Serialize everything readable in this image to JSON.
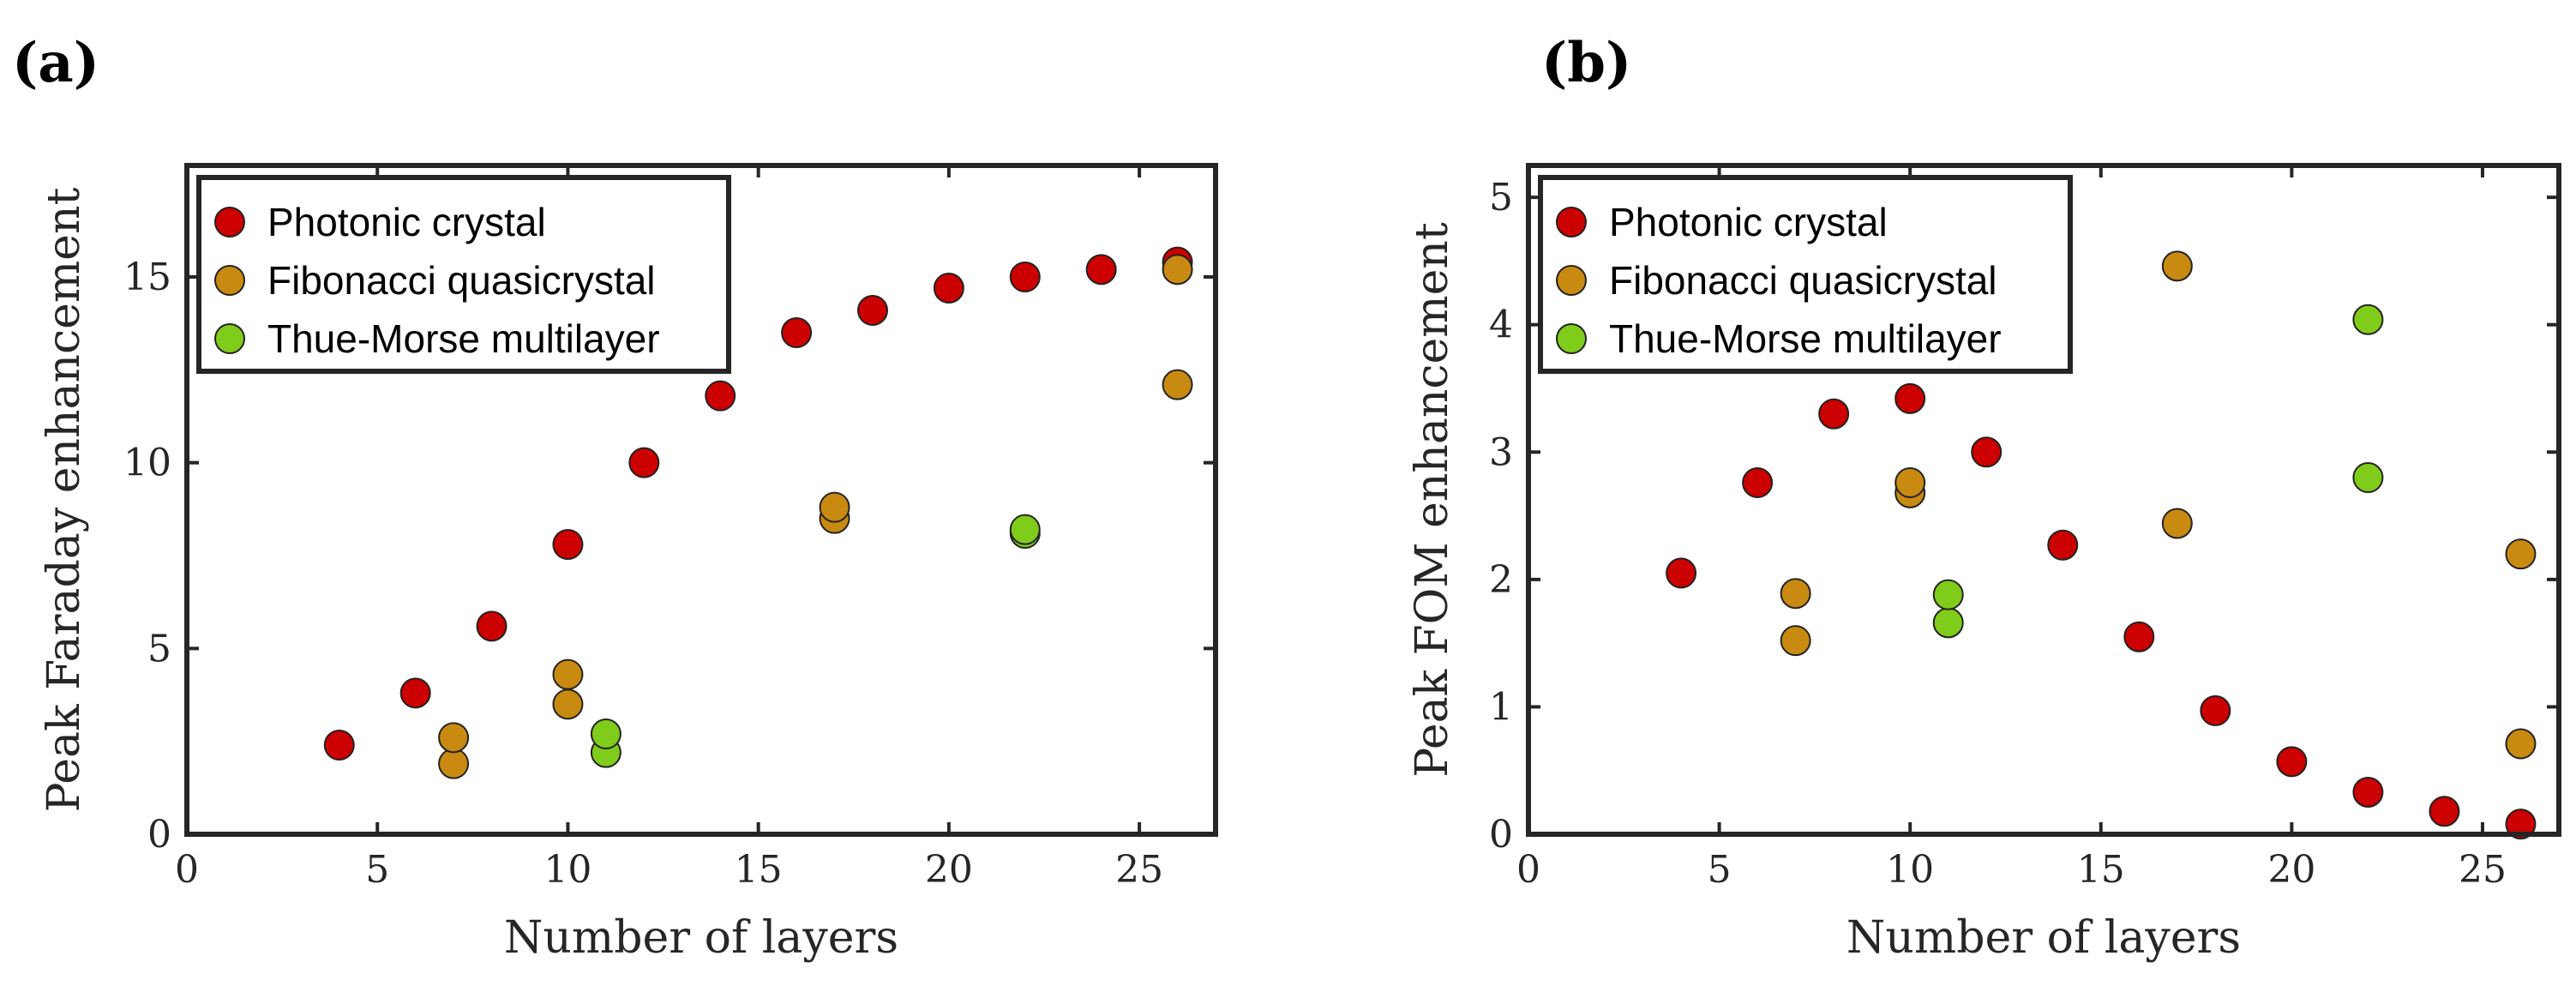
{
  "chart_data": [
    {
      "panel_label": "(a)",
      "type": "scatter",
      "xlabel": "Number of layers",
      "ylabel": "Peak Faraday enhancement",
      "xlim": [
        0,
        27
      ],
      "ylim": [
        0,
        18
      ],
      "xticks": [
        0,
        5,
        10,
        15,
        20,
        25
      ],
      "yticks": [
        0,
        5,
        10,
        15
      ],
      "xtick_labels": [
        "0",
        "5",
        "10",
        "15",
        "20",
        "25"
      ],
      "ytick_labels": [
        "0",
        "5",
        "10",
        "15"
      ],
      "grid": false,
      "legend_position": "top-left",
      "series": [
        {
          "name": "Photonic crystal",
          "color": "#cc0000",
          "x": [
            4,
            6,
            8,
            10,
            12,
            14,
            16,
            18,
            20,
            22,
            24,
            26
          ],
          "y": [
            2.4,
            3.8,
            5.6,
            7.8,
            10.0,
            11.8,
            13.5,
            14.1,
            14.7,
            15.0,
            15.2,
            15.4
          ]
        },
        {
          "name": "Fibonacci quasicrystal",
          "color": "#c88a10",
          "x": [
            7,
            7,
            10,
            10,
            17,
            17,
            26,
            26
          ],
          "y": [
            1.9,
            2.6,
            3.5,
            4.3,
            8.5,
            8.8,
            12.1,
            15.2
          ]
        },
        {
          "name": "Thue-Morse multilayer",
          "color": "#80cc1a",
          "x": [
            11,
            11,
            22,
            22
          ],
          "y": [
            2.2,
            2.7,
            8.1,
            8.2
          ]
        }
      ]
    },
    {
      "panel_label": "(b)",
      "type": "scatter",
      "xlabel": "Number of layers",
      "ylabel": "Peak FOM enhancement",
      "xlim": [
        0,
        27
      ],
      "ylim": [
        0,
        5.25
      ],
      "xticks": [
        0,
        5,
        10,
        15,
        20,
        25
      ],
      "yticks": [
        0,
        1,
        2,
        3,
        4,
        5
      ],
      "xtick_labels": [
        "0",
        "5",
        "10",
        "15",
        "20",
        "25"
      ],
      "ytick_labels": [
        "0",
        "1",
        "2",
        "3",
        "4",
        "5"
      ],
      "grid": false,
      "legend_position": "top-left",
      "series": [
        {
          "name": "Photonic crystal",
          "color": "#cc0000",
          "x": [
            4,
            6,
            8,
            10,
            12,
            14,
            16,
            18,
            20,
            22,
            24,
            26
          ],
          "y": [
            2.05,
            2.76,
            3.3,
            3.42,
            3.0,
            2.27,
            1.55,
            0.97,
            0.57,
            0.33,
            0.18,
            0.08
          ]
        },
        {
          "name": "Fibonacci quasicrystal",
          "color": "#c88a10",
          "x": [
            7,
            7,
            10,
            10,
            17,
            17,
            26,
            26
          ],
          "y": [
            1.52,
            1.89,
            2.68,
            2.76,
            2.44,
            4.46,
            0.71,
            2.2
          ]
        },
        {
          "name": "Thue-Morse multilayer",
          "color": "#80cc1a",
          "x": [
            11,
            11,
            22,
            22
          ],
          "y": [
            1.66,
            1.88,
            2.8,
            4.04
          ]
        }
      ]
    }
  ]
}
